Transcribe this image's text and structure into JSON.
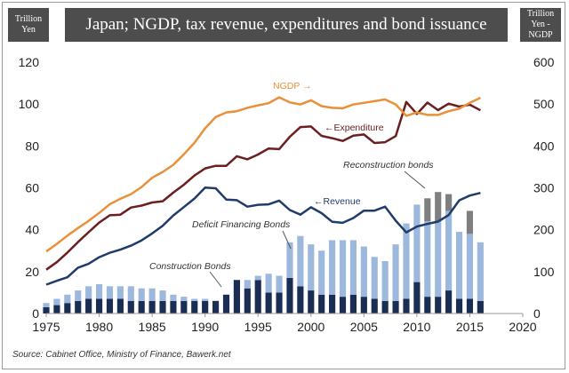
{
  "header": {
    "title": "Japan; NGDP, tax revenue, expenditures and bond issuance",
    "left_unit": "Trillion Yen",
    "right_unit": "Trillion Yen - NGDP"
  },
  "source": "Source: Cabinet Office, Ministry of Finance, Bawerk.net",
  "chart_data": {
    "type": "bar",
    "title": "Japan; NGDP, tax revenue, expenditures and bond issuance",
    "xlim": [
      1975,
      2020
    ],
    "x_ticks": [
      "1975",
      "1980",
      "1985",
      "1990",
      "1995",
      "2000",
      "2005",
      "2010",
      "2015",
      "2020"
    ],
    "ylim_left": [
      0,
      120
    ],
    "y_ticks_left": [
      "0",
      "20",
      "40",
      "60",
      "80",
      "100",
      "120"
    ],
    "ylim_right": [
      0,
      600
    ],
    "y_ticks_right": [
      "0",
      "100",
      "200",
      "300",
      "400",
      "500",
      "600"
    ],
    "grid": false,
    "years": [
      1975,
      1976,
      1977,
      1978,
      1979,
      1980,
      1981,
      1982,
      1983,
      1984,
      1985,
      1986,
      1987,
      1988,
      1989,
      1990,
      1991,
      1992,
      1993,
      1994,
      1995,
      1996,
      1997,
      1998,
      1999,
      2000,
      2001,
      2002,
      2003,
      2004,
      2005,
      2006,
      2007,
      2008,
      2009,
      2010,
      2011,
      2012,
      2013,
      2014,
      2015,
      2016
    ],
    "series": [
      {
        "name": "Construction Bonds",
        "kind": "bar",
        "axis": "left",
        "color": "#1a2d52",
        "values": [
          3,
          4,
          5,
          6,
          7,
          7,
          7,
          7,
          6,
          6,
          6,
          6,
          6,
          6,
          6,
          6,
          6,
          9,
          16,
          12,
          16,
          10,
          10,
          17,
          13,
          11,
          9,
          9,
          8,
          9,
          8,
          7,
          6,
          6,
          7,
          15,
          8,
          8,
          11,
          7,
          7,
          6
        ]
      },
      {
        "name": "Deficit Financing Bonds",
        "kind": "bar",
        "axis": "left",
        "color": "#9db8dd",
        "values": [
          2,
          3,
          4,
          5,
          6,
          7,
          6,
          6,
          7,
          6,
          6,
          5,
          3,
          2,
          1,
          1,
          0,
          0,
          0,
          4,
          2,
          9,
          8,
          17,
          24,
          22,
          21,
          26,
          27,
          26,
          24,
          20,
          19,
          27,
          36,
          37,
          36,
          36,
          38,
          32,
          31,
          28
        ]
      },
      {
        "name": "Reconstruction bonds",
        "kind": "bar",
        "axis": "left",
        "color": "#7f7f7f",
        "values": [
          0,
          0,
          0,
          0,
          0,
          0,
          0,
          0,
          0,
          0,
          0,
          0,
          0,
          0,
          0,
          0,
          0,
          0,
          0,
          0,
          0,
          0,
          0,
          0,
          0,
          0,
          0,
          0,
          0,
          0,
          0,
          0,
          0,
          0,
          0,
          0,
          11,
          14,
          8,
          0,
          11,
          0
        ]
      },
      {
        "name": "Revenue",
        "kind": "line",
        "axis": "left",
        "color": "#1f3c6b",
        "values": [
          13.8,
          15.6,
          17.3,
          21.9,
          23.7,
          26.9,
          29.0,
          30.5,
          32.4,
          34.9,
          38.2,
          41.9,
          46.8,
          50.8,
          54.9,
          60.1,
          59.8,
          54.4,
          54.1,
          51.0,
          51.9,
          52.1,
          53.9,
          49.4,
          47.2,
          50.7,
          47.9,
          43.8,
          43.3,
          45.6,
          49.1,
          49.1,
          51.0,
          44.3,
          38.7,
          41.5,
          42.8,
          43.9,
          47.0,
          54.0,
          56.3,
          57.6
        ]
      },
      {
        "name": "Expenditure",
        "kind": "line",
        "axis": "left",
        "color": "#6b1f1f",
        "values": [
          20.9,
          24.5,
          29.1,
          34.1,
          38.8,
          43.4,
          46.9,
          47.2,
          50.6,
          51.5,
          53.0,
          53.6,
          57.7,
          61.5,
          65.9,
          69.3,
          70.5,
          70.5,
          75.1,
          73.6,
          75.9,
          78.8,
          78.5,
          84.4,
          89.0,
          89.3,
          84.8,
          83.7,
          82.4,
          84.9,
          85.5,
          81.4,
          81.8,
          84.7,
          101.0,
          95.3,
          100.7,
          97.1,
          100.2,
          98.8,
          99.7,
          97.0
        ]
      },
      {
        "name": "NGDP",
        "kind": "line",
        "axis": "right",
        "color": "#e8903a",
        "values": [
          148,
          166,
          186,
          204,
          221,
          240,
          261,
          274,
          285,
          302,
          324,
          338,
          355,
          380,
          408,
          442,
          469,
          480,
          483,
          491,
          497,
          502,
          516,
          504,
          499,
          509,
          495,
          491,
          490,
          499,
          503,
          507,
          511,
          499,
          472,
          480,
          474,
          474,
          483,
          489,
          503,
          515
        ]
      }
    ],
    "annotations": [
      "NGDP →",
      "←Expenditure",
      "←Revenue",
      "Reconstruction bonds",
      "Deficit Financing Bonds",
      "Construction Bonds"
    ]
  }
}
